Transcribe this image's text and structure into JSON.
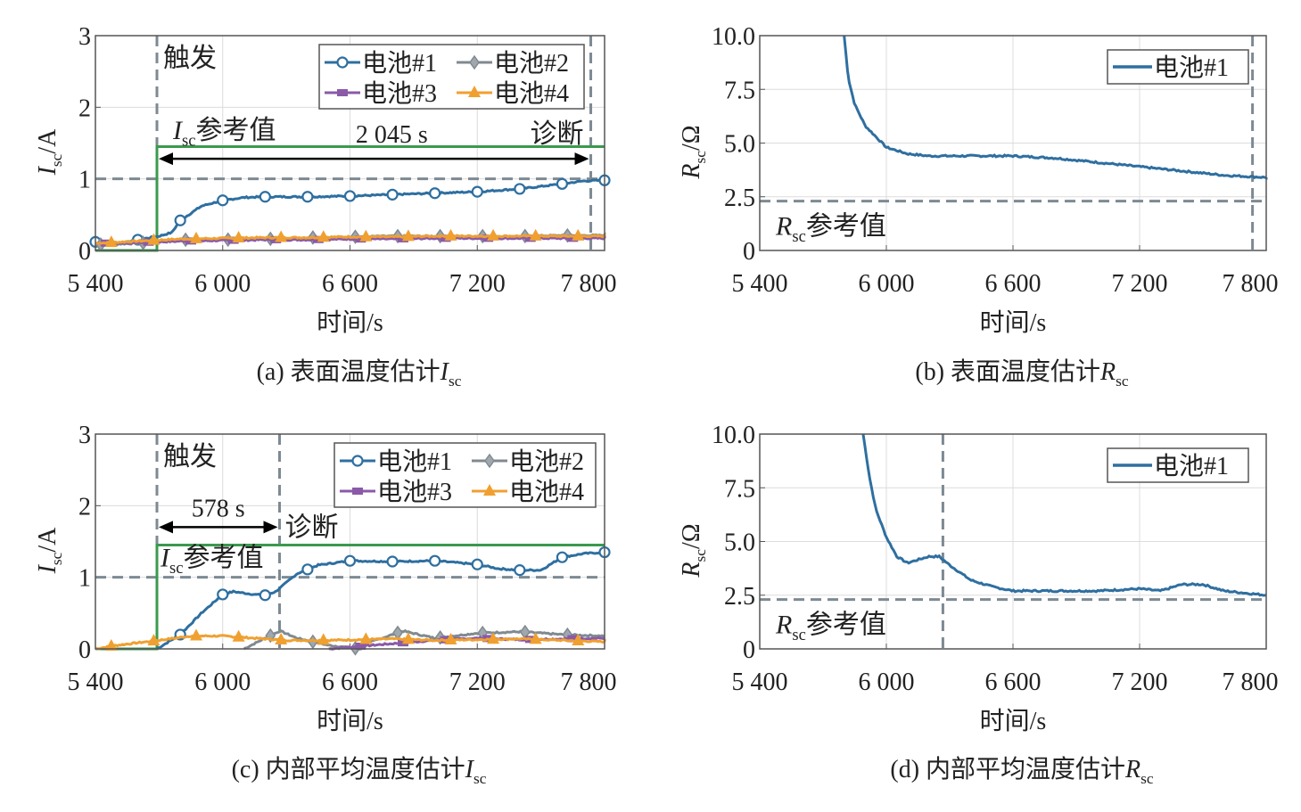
{
  "chart_data": [
    {
      "id": "a",
      "type": "line",
      "caption": {
        "prefix": "(a) 表面温度估计",
        "var": "I",
        "sub": "sc"
      },
      "xlabel": "时间/s",
      "ylabel": {
        "var": "I",
        "sub": "sc",
        "unit": "/A"
      },
      "xlim": [
        5400,
        7800
      ],
      "ylim": [
        0,
        3
      ],
      "xticks": [
        5400,
        6000,
        6600,
        7200,
        7800
      ],
      "xtick_labels": [
        "5 400",
        "6 000",
        "6 600",
        "7 200",
        "7 800"
      ],
      "yticks": [
        0,
        1,
        2,
        3
      ],
      "ytick_labels": [
        "0",
        "1",
        "2",
        "3"
      ],
      "grid": true,
      "legend": {
        "placement": "top-right",
        "columns": 2
      },
      "trigger": {
        "x": 5690,
        "label": "触发"
      },
      "diagnosis": {
        "x": 7735,
        "label": "诊断"
      },
      "duration_label": "2 045 s",
      "threshold": 1.0,
      "reference": {
        "label_var": "I",
        "label_sub": "sc",
        "label_text": "参考值",
        "color": "#3a9a4e",
        "before": 0,
        "after": 1.45
      },
      "series": [
        {
          "name": "电池#1",
          "color": "#2e6fa0",
          "marker": "circle",
          "points": [
            [
              5400,
              0.12
            ],
            [
              5500,
              0.1
            ],
            [
              5600,
              0.15
            ],
            [
              5700,
              0.2
            ],
            [
              5760,
              0.25
            ],
            [
              5800,
              0.42
            ],
            [
              5900,
              0.62
            ],
            [
              6000,
              0.7
            ],
            [
              6100,
              0.74
            ],
            [
              6200,
              0.75
            ],
            [
              6400,
              0.75
            ],
            [
              6600,
              0.76
            ],
            [
              6800,
              0.78
            ],
            [
              7000,
              0.8
            ],
            [
              7200,
              0.82
            ],
            [
              7400,
              0.86
            ],
            [
              7600,
              0.93
            ],
            [
              7700,
              0.97
            ],
            [
              7800,
              0.98
            ]
          ]
        },
        {
          "name": "电池#2",
          "color": "#808a90",
          "marker": "diamond",
          "points": [
            [
              5400,
              0.08
            ],
            [
              5600,
              0.1
            ],
            [
              5800,
              0.15
            ],
            [
              6000,
              0.15
            ],
            [
              6200,
              0.16
            ],
            [
              6400,
              0.18
            ],
            [
              6600,
              0.19
            ],
            [
              6800,
              0.2
            ],
            [
              7000,
              0.2
            ],
            [
              7200,
              0.2
            ],
            [
              7400,
              0.2
            ],
            [
              7600,
              0.21
            ],
            [
              7800,
              0.21
            ]
          ]
        },
        {
          "name": "电池#3",
          "color": "#8a5aa8",
          "marker": "square",
          "points": [
            [
              5400,
              0.1
            ],
            [
              5600,
              0.11
            ],
            [
              5800,
              0.13
            ],
            [
              6000,
              0.14
            ],
            [
              6200,
              0.15
            ],
            [
              6400,
              0.15
            ],
            [
              6600,
              0.16
            ],
            [
              6800,
              0.16
            ],
            [
              7000,
              0.17
            ],
            [
              7200,
              0.17
            ],
            [
              7400,
              0.17
            ],
            [
              7600,
              0.17
            ],
            [
              7800,
              0.17
            ]
          ]
        },
        {
          "name": "电池#4",
          "color": "#f0a030",
          "marker": "triangle",
          "points": [
            [
              5400,
              0.1
            ],
            [
              5600,
              0.13
            ],
            [
              5800,
              0.16
            ],
            [
              6000,
              0.17
            ],
            [
              6200,
              0.18
            ],
            [
              6400,
              0.18
            ],
            [
              6600,
              0.19
            ],
            [
              6800,
              0.19
            ],
            [
              7000,
              0.2
            ],
            [
              7200,
              0.2
            ],
            [
              7400,
              0.2
            ],
            [
              7600,
              0.2
            ],
            [
              7800,
              0.2
            ]
          ]
        }
      ]
    },
    {
      "id": "b",
      "type": "line",
      "caption": {
        "prefix": "(b) 表面温度估计",
        "var": "R",
        "sub": "sc"
      },
      "xlabel": "时间/s",
      "ylabel": {
        "var": "R",
        "sub": "sc",
        "unit": "/Ω"
      },
      "xlim": [
        5400,
        7800
      ],
      "ylim": [
        0,
        10
      ],
      "xticks": [
        5400,
        6000,
        6600,
        7200,
        7800
      ],
      "xtick_labels": [
        "5 400",
        "6 000",
        "6 600",
        "7 200",
        "7 800"
      ],
      "yticks": [
        0,
        2.5,
        5,
        7.5,
        10
      ],
      "ytick_labels": [
        "0",
        "2.5",
        "5.0",
        "7.5",
        "10.0"
      ],
      "grid": true,
      "legend": {
        "placement": "top-right",
        "columns": 1
      },
      "diagnosis": {
        "x": 7735
      },
      "threshold": 2.3,
      "threshold_label": {
        "var": "R",
        "sub": "sc",
        "text": "参考值"
      },
      "series": [
        {
          "name": "电池#1",
          "color": "#2e6fa0",
          "marker": "none",
          "points": [
            [
              5800,
              10
            ],
            [
              5820,
              8
            ],
            [
              5850,
              6.8
            ],
            [
              5900,
              5.8
            ],
            [
              6000,
              4.8
            ],
            [
              6100,
              4.5
            ],
            [
              6200,
              4.4
            ],
            [
              6600,
              4.4
            ],
            [
              6800,
              4.3
            ],
            [
              7000,
              4.1
            ],
            [
              7200,
              3.9
            ],
            [
              7400,
              3.7
            ],
            [
              7600,
              3.5
            ],
            [
              7800,
              3.4
            ]
          ]
        }
      ]
    },
    {
      "id": "c",
      "type": "line",
      "caption": {
        "prefix": "(c) 内部平均温度估计",
        "var": "I",
        "sub": "sc"
      },
      "xlabel": "时间/s",
      "ylabel": {
        "var": "I",
        "sub": "sc",
        "unit": "/A"
      },
      "xlim": [
        5400,
        7800
      ],
      "ylim": [
        0,
        3
      ],
      "xticks": [
        5400,
        6000,
        6600,
        7200,
        7800
      ],
      "xtick_labels": [
        "5 400",
        "6 000",
        "6 600",
        "7 200",
        "7 800"
      ],
      "yticks": [
        0,
        1,
        2,
        3
      ],
      "ytick_labels": [
        "0",
        "1",
        "2",
        "3"
      ],
      "grid": true,
      "legend": {
        "placement": "top-right",
        "columns": 2
      },
      "trigger": {
        "x": 5690,
        "label": "触发"
      },
      "diagnosis": {
        "x": 6268,
        "label": "诊断"
      },
      "duration_label": "578 s",
      "threshold": 1.0,
      "reference": {
        "label_var": "I",
        "label_sub": "sc",
        "label_text": "参考值",
        "color": "#3a9a4e",
        "before": 0,
        "after": 1.45
      },
      "series": [
        {
          "name": "电池#1",
          "color": "#2e6fa0",
          "marker": "circle",
          "points": [
            [
              5690,
              0
            ],
            [
              5800,
              0.2
            ],
            [
              5900,
              0.5
            ],
            [
              6000,
              0.76
            ],
            [
              6050,
              0.8
            ],
            [
              6150,
              0.76
            ],
            [
              6200,
              0.75
            ],
            [
              6250,
              0.8
            ],
            [
              6350,
              1.05
            ],
            [
              6450,
              1.17
            ],
            [
              6600,
              1.23
            ],
            [
              6800,
              1.22
            ],
            [
              7000,
              1.23
            ],
            [
              7200,
              1.18
            ],
            [
              7300,
              1.12
            ],
            [
              7400,
              1.1
            ],
            [
              7500,
              1.1
            ],
            [
              7600,
              1.28
            ],
            [
              7700,
              1.33
            ],
            [
              7800,
              1.35
            ]
          ]
        },
        {
          "name": "电池#2",
          "color": "#808a90",
          "marker": "diamond",
          "points": [
            [
              6100,
              0
            ],
            [
              6200,
              0.15
            ],
            [
              6270,
              0.25
            ],
            [
              6350,
              0.15
            ],
            [
              6500,
              0.05
            ],
            [
              6650,
              0.0
            ],
            [
              6700,
              0.1
            ],
            [
              6850,
              0.25
            ],
            [
              7000,
              0.15
            ],
            [
              7200,
              0.22
            ],
            [
              7400,
              0.24
            ],
            [
              7600,
              0.2
            ],
            [
              7800,
              0.18
            ]
          ]
        },
        {
          "name": "电池#3",
          "color": "#8a5aa8",
          "marker": "square",
          "points": [
            [
              6500,
              0
            ],
            [
              6700,
              0.05
            ],
            [
              7000,
              0.12
            ],
            [
              7200,
              0.15
            ],
            [
              7400,
              0.13
            ],
            [
              7600,
              0.14
            ],
            [
              7800,
              0.15
            ]
          ]
        },
        {
          "name": "电池#4",
          "color": "#f0a030",
          "marker": "triangle",
          "points": [
            [
              5400,
              0
            ],
            [
              5500,
              0.05
            ],
            [
              5700,
              0.12
            ],
            [
              5850,
              0.18
            ],
            [
              6000,
              0.18
            ],
            [
              6150,
              0.15
            ],
            [
              6300,
              0.12
            ],
            [
              6500,
              0.12
            ],
            [
              6800,
              0.14
            ],
            [
              7000,
              0.12
            ],
            [
              7400,
              0.14
            ],
            [
              7800,
              0.1
            ]
          ]
        }
      ]
    },
    {
      "id": "d",
      "type": "line",
      "caption": {
        "prefix": "(d) 内部平均温度估计",
        "var": "R",
        "sub": "sc"
      },
      "xlabel": "时间/s",
      "ylabel": {
        "var": "R",
        "sub": "sc",
        "unit": "/Ω"
      },
      "xlim": [
        5400,
        7800
      ],
      "ylim": [
        0,
        10
      ],
      "xticks": [
        5400,
        6000,
        6600,
        7200,
        7800
      ],
      "xtick_labels": [
        "5 400",
        "6 000",
        "6 600",
        "7 200",
        "7 800"
      ],
      "yticks": [
        0,
        2.5,
        5,
        7.5,
        10
      ],
      "ytick_labels": [
        "0",
        "2.5",
        "5.0",
        "7.5",
        "10.0"
      ],
      "grid": true,
      "legend": {
        "placement": "top-right",
        "columns": 1
      },
      "diagnosis": {
        "x": 6268
      },
      "threshold": 2.3,
      "threshold_label": {
        "var": "R",
        "sub": "sc",
        "text": "参考值"
      },
      "series": [
        {
          "name": "电池#1",
          "color": "#2e6fa0",
          "marker": "none",
          "points": [
            [
              5890,
              10
            ],
            [
              5920,
              8
            ],
            [
              5950,
              6.5
            ],
            [
              6000,
              5.2
            ],
            [
              6050,
              4.3
            ],
            [
              6100,
              4.0
            ],
            [
              6200,
              4.3
            ],
            [
              6250,
              4.3
            ],
            [
              6300,
              3.9
            ],
            [
              6400,
              3.2
            ],
            [
              6500,
              2.9
            ],
            [
              6600,
              2.7
            ],
            [
              7000,
              2.7
            ],
            [
              7200,
              2.8
            ],
            [
              7300,
              2.7
            ],
            [
              7400,
              3.0
            ],
            [
              7500,
              3.0
            ],
            [
              7600,
              2.7
            ],
            [
              7800,
              2.5
            ]
          ]
        }
      ]
    }
  ]
}
